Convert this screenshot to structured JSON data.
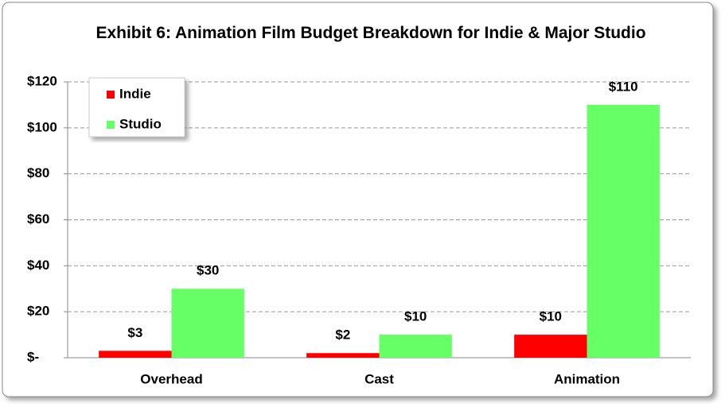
{
  "chart_data": {
    "type": "bar",
    "title": "Exhibit 6: Animation Film Budget Breakdown for Indie & Major Studio",
    "categories": [
      "Overhead",
      "Cast",
      "Animation"
    ],
    "series": [
      {
        "name": "Indie",
        "color": "#ff0000",
        "values": [
          3,
          2,
          10
        ],
        "value_labels": [
          "$3",
          "$2",
          "$10"
        ]
      },
      {
        "name": "Studio",
        "color": "#66ff66",
        "values": [
          30,
          10,
          110
        ],
        "value_labels": [
          "$30",
          "$10",
          "$110"
        ]
      }
    ],
    "ylim": [
      0,
      120
    ],
    "yticks": [
      {
        "value": 0,
        "label": "$-"
      },
      {
        "value": 20,
        "label": "$20"
      },
      {
        "value": 40,
        "label": "$40"
      },
      {
        "value": 60,
        "label": "$60"
      },
      {
        "value": 80,
        "label": "$80"
      },
      {
        "value": 100,
        "label": "$100"
      },
      {
        "value": 120,
        "label": "$120"
      }
    ],
    "grid": true,
    "legend": "top-left"
  }
}
